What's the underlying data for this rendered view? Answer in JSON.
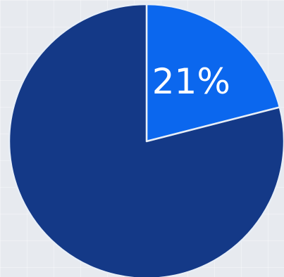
{
  "chart_data": {
    "type": "pie",
    "title": "",
    "slices": [
      {
        "value": 21,
        "label": "21%",
        "color": "#0b67ee"
      },
      {
        "value": 79,
        "label": "",
        "color": "#143987"
      }
    ],
    "start_angle_deg": 0,
    "direction": "clockwise",
    "separator_color": "#e7eef7"
  }
}
